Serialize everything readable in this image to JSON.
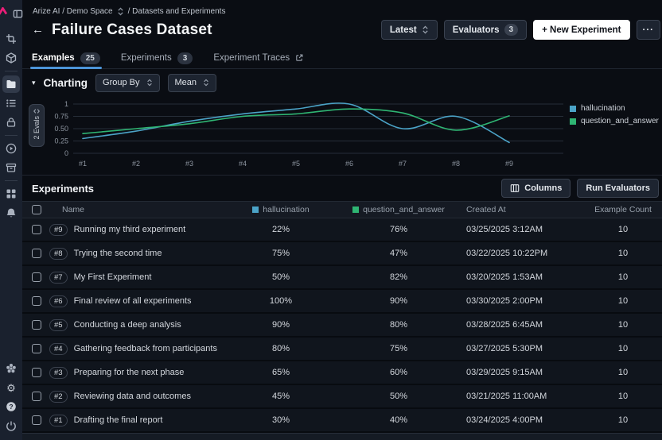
{
  "colors": {
    "accent_blue": "#4C94D8",
    "sidebar_bg": "#1a212e",
    "page_bg": "#0a0d13",
    "logo_pink": "#ec1e79"
  },
  "sidebar": {
    "icons": [
      "arize-logo",
      "panel-toggle",
      "crop",
      "cube",
      "folder",
      "list",
      "lock",
      "play-circle",
      "archive",
      "grid",
      "bell",
      "flower",
      "gear",
      "help",
      "power"
    ],
    "active_icon": "folder"
  },
  "breadcrumb": {
    "space": "Arize AI / Demo Space",
    "section": "/ Datasets and Experiments"
  },
  "header": {
    "back_arrow": "←",
    "title": "Failure Cases Dataset",
    "latest_label": "Latest",
    "evaluators_label": "Evaluators",
    "evaluators_count": "3",
    "new_experiment_label": "+ New Experiment",
    "more_label": "···"
  },
  "tabs": [
    {
      "label": "Examples",
      "badge": "25",
      "active": true
    },
    {
      "label": "Experiments",
      "badge": "3",
      "active": false
    },
    {
      "label": "Experiment Traces",
      "external": true,
      "active": false
    }
  ],
  "charting": {
    "disclosure": "▾",
    "title": "Charting",
    "group_by_label": "Group By",
    "aggregation_label": "Mean",
    "evals_count_label": "2 Evals"
  },
  "chart_data": {
    "type": "line",
    "categories": [
      "#1",
      "#2",
      "#3",
      "#4",
      "#5",
      "#6",
      "#7",
      "#8",
      "#9"
    ],
    "series": [
      {
        "name": "hallucination",
        "color": "#4BA3C7",
        "values": [
          0.3,
          0.45,
          0.65,
          0.8,
          0.9,
          1.0,
          0.5,
          0.75,
          0.22
        ]
      },
      {
        "name": "question_and_answer",
        "color": "#2FB573",
        "values": [
          0.4,
          0.5,
          0.6,
          0.75,
          0.8,
          0.9,
          0.82,
          0.47,
          0.76
        ]
      }
    ],
    "ylim": [
      0,
      1
    ],
    "yticks": [
      {
        "value": 1,
        "label": "1"
      },
      {
        "value": 0.75,
        "label": "0.75"
      },
      {
        "value": 0.5,
        "label": "0.50"
      },
      {
        "value": 0.25,
        "label": "0.25"
      },
      {
        "value": 0,
        "label": "0"
      }
    ],
    "grid": "on",
    "legend_position": "right"
  },
  "experiments": {
    "title": "Experiments",
    "columns_button": "Columns",
    "run_evaluators_button": "Run Evaluators",
    "table": {
      "headers": {
        "name": "Name",
        "hallucination": "hallucination",
        "qa": "question_and_answer",
        "created": "Created At",
        "count": "Example Count"
      },
      "rows": [
        {
          "id": "#9",
          "name": "Running my third experiment",
          "hallucination": "22%",
          "qa": "76%",
          "created": "03/25/2025 3:12AM",
          "count": "10"
        },
        {
          "id": "#8",
          "name": "Trying the second time",
          "hallucination": "75%",
          "qa": "47%",
          "created": "03/22/2025 10:22PM",
          "count": "10"
        },
        {
          "id": "#7",
          "name": "My First Experiment",
          "hallucination": "50%",
          "qa": "82%",
          "created": "03/20/2025 1:53AM",
          "count": "10"
        },
        {
          "id": "#6",
          "name": "Final review of all experiments",
          "hallucination": "100%",
          "qa": "90%",
          "created": "03/30/2025 2:00PM",
          "count": "10"
        },
        {
          "id": "#5",
          "name": "Conducting a deep analysis",
          "hallucination": "90%",
          "qa": "80%",
          "created": "03/28/2025 6:45AM",
          "count": "10"
        },
        {
          "id": "#4",
          "name": "Gathering feedback from participants",
          "hallucination": "80%",
          "qa": "75%",
          "created": "03/27/2025 5:30PM",
          "count": "10"
        },
        {
          "id": "#3",
          "name": "Preparing for the next phase",
          "hallucination": "65%",
          "qa": "60%",
          "created": "03/29/2025 9:15AM",
          "count": "10"
        },
        {
          "id": "#2",
          "name": "Reviewing data and outcomes",
          "hallucination": "45%",
          "qa": "50%",
          "created": "03/21/2025 11:00AM",
          "count": "10"
        },
        {
          "id": "#1",
          "name": "Drafting the final report",
          "hallucination": "30%",
          "qa": "40%",
          "created": "03/24/2025 4:00PM",
          "count": "10"
        }
      ]
    }
  }
}
